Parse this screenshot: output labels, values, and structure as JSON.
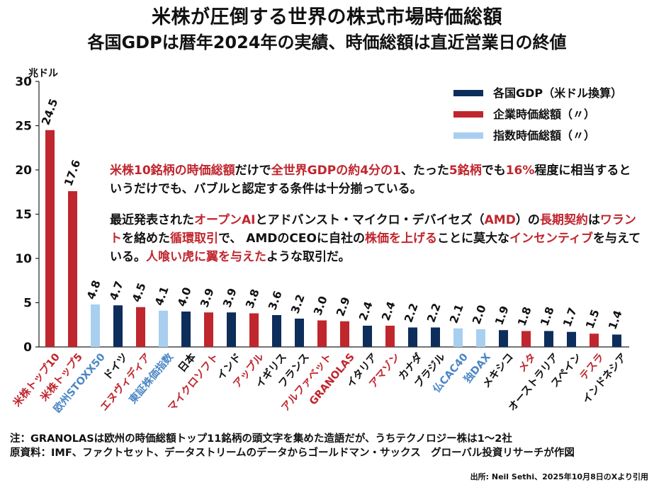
{
  "title": "米株が圧倒する世界の株式市場時価総額",
  "subtitle": "各国GDPは暦年2024年の実績、時価総額は直近営業日の終値",
  "chart_data": {
    "type": "bar",
    "y_unit": "兆ドル",
    "ylim": [
      0,
      30
    ],
    "yticks": [
      0,
      5,
      10,
      15,
      20,
      25,
      30
    ],
    "grid": false,
    "legend_position": "top-right",
    "legend": [
      {
        "key": "gdp",
        "label": "各国GDP（米ドル換算）",
        "color": "#0d2d5b"
      },
      {
        "key": "corp",
        "label": "企業時価総額（〃）",
        "color": "#c0262d"
      },
      {
        "key": "index",
        "label": "指数時価総額（〃）",
        "color": "#a8cff0"
      }
    ],
    "bars": [
      {
        "category": "米株トップ10",
        "value": 24.5,
        "kind": "corp"
      },
      {
        "category": "米株トップ5",
        "value": 17.6,
        "kind": "corp"
      },
      {
        "category": "欧州STOXX50",
        "value": 4.8,
        "kind": "index"
      },
      {
        "category": "ドイツ",
        "value": 4.7,
        "kind": "gdp"
      },
      {
        "category": "エヌヴィディア",
        "value": 4.5,
        "kind": "corp"
      },
      {
        "category": "東証株価指数",
        "value": 4.1,
        "kind": "index"
      },
      {
        "category": "日本",
        "value": 4.0,
        "kind": "gdp"
      },
      {
        "category": "マイクロソフト",
        "value": 3.9,
        "kind": "corp"
      },
      {
        "category": "インド",
        "value": 3.9,
        "kind": "gdp"
      },
      {
        "category": "アップル",
        "value": 3.8,
        "kind": "corp"
      },
      {
        "category": "イギリス",
        "value": 3.6,
        "kind": "gdp"
      },
      {
        "category": "フランス",
        "value": 3.2,
        "kind": "gdp"
      },
      {
        "category": "アルファベット",
        "value": 3.0,
        "kind": "corp"
      },
      {
        "category": "GRANOLAS",
        "value": 2.9,
        "kind": "corp"
      },
      {
        "category": "イタリア",
        "value": 2.4,
        "kind": "gdp"
      },
      {
        "category": "アマゾン",
        "value": 2.4,
        "kind": "corp"
      },
      {
        "category": "カナダ",
        "value": 2.2,
        "kind": "gdp"
      },
      {
        "category": "ブラジル",
        "value": 2.2,
        "kind": "gdp"
      },
      {
        "category": "仏CAC40",
        "value": 2.1,
        "kind": "index"
      },
      {
        "category": "独DAX",
        "value": 2.0,
        "kind": "index"
      },
      {
        "category": "メキシコ",
        "value": 1.9,
        "kind": "gdp"
      },
      {
        "category": "メタ",
        "value": 1.8,
        "kind": "corp"
      },
      {
        "category": "オーストラリア",
        "value": 1.8,
        "kind": "gdp"
      },
      {
        "category": "スペイン",
        "value": 1.7,
        "kind": "gdp"
      },
      {
        "category": "テスラ",
        "value": 1.5,
        "kind": "corp"
      },
      {
        "category": "インドネシア",
        "value": 1.4,
        "kind": "gdp"
      }
    ],
    "label_colors": {
      "gdp": "#111111",
      "corp": "#c0262d",
      "index": "#4b86c5"
    }
  },
  "annotation1": [
    {
      "t": "米株10銘柄の時価総額",
      "r": true
    },
    {
      "t": "だけで",
      "r": false
    },
    {
      "t": "全世界GDPの約4分の1",
      "r": true
    },
    {
      "t": "、たった",
      "r": false
    },
    {
      "t": "5銘柄",
      "r": true
    },
    {
      "t": "でも",
      "r": false
    },
    {
      "t": "16%",
      "r": true
    },
    {
      "t": "程度に相当するというだけでも、バブルと認定する条件は十分揃っている。",
      "r": false
    }
  ],
  "annotation2": [
    {
      "t": "最近発表された",
      "r": false
    },
    {
      "t": "オープンAI",
      "r": true
    },
    {
      "t": "とアドバンスト・マイクロ・デバイセズ（",
      "r": false
    },
    {
      "t": "AMD",
      "r": true
    },
    {
      "t": "）の",
      "r": false
    },
    {
      "t": "長期契約",
      "r": true
    },
    {
      "t": "は",
      "r": false
    },
    {
      "t": "ワラント",
      "r": true
    },
    {
      "t": "を絡めた",
      "r": false
    },
    {
      "t": "循環取引",
      "r": true
    },
    {
      "t": "で、 AMDのCEOに自社の",
      "r": false
    },
    {
      "t": "株価を上げる",
      "r": true
    },
    {
      "t": "ことに莫大な",
      "r": false
    },
    {
      "t": "インセンティブ",
      "r": true
    },
    {
      "t": "を与えている。",
      "r": false
    },
    {
      "t": "人喰い虎に翼を与えた",
      "r": true
    },
    {
      "t": "ような取引だ。",
      "r": false
    }
  ],
  "note": "注：GRANOLASは欧州の時価総額トップ11銘柄の頭文字を集めた造語だが、うちテクノロジー株は1～2社",
  "source": "原資料：IMF、ファクトセット、データストリームのデータからゴールドマン・サックス　グローバル投資リサーチが作図",
  "credit": "出所: Neil Sethi、2025年10月8日のXより引用"
}
